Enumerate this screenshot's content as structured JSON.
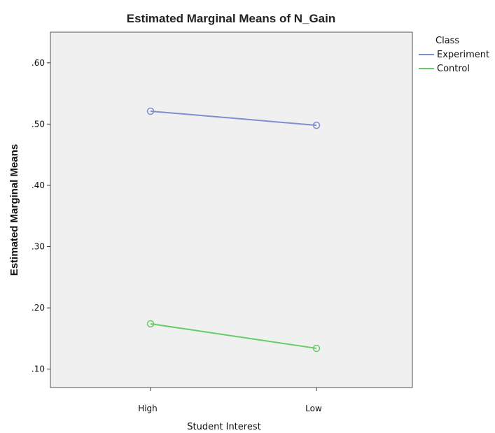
{
  "chart_data": {
    "type": "line",
    "title": "Estimated Marginal Means of N_Gain",
    "xlabel": "Student Interest",
    "ylabel": "Estimated Marginal Means",
    "categories": [
      "High",
      "Low"
    ],
    "ylim": [
      0.07,
      0.65
    ],
    "yticks": [
      0.1,
      0.2,
      0.3,
      0.4,
      0.5,
      0.6
    ],
    "ytick_labels": [
      ".10",
      ".20",
      ".30",
      ".40",
      ".50",
      ".60"
    ],
    "legend_title": "Class",
    "legend_position": "right-top",
    "grid": false,
    "series": [
      {
        "name": "Experiment",
        "values": [
          0.521,
          0.498
        ],
        "color": "#7f8fd0"
      },
      {
        "name": "Control",
        "values": [
          0.174,
          0.134
        ],
        "color": "#66cc66"
      }
    ]
  }
}
